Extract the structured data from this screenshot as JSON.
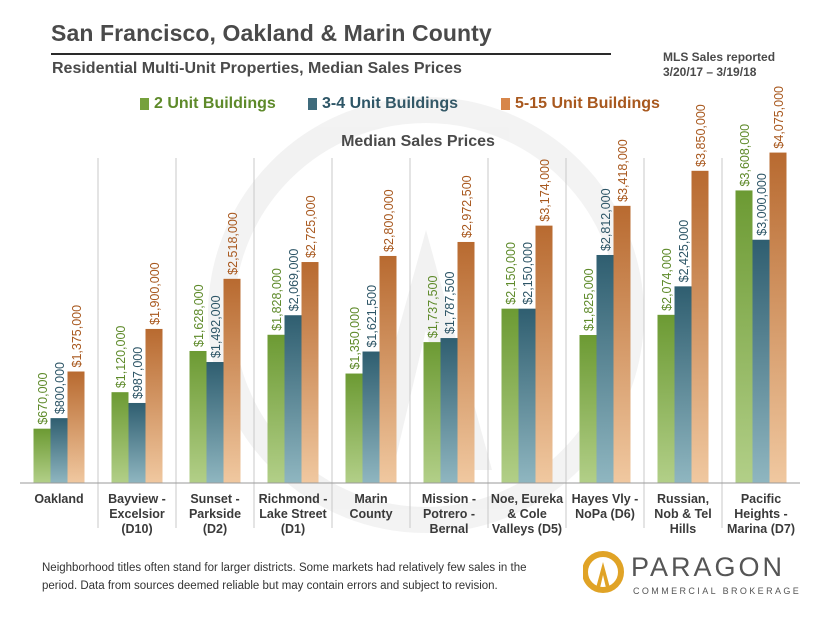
{
  "title": "San Francisco, Oakland & Marin County",
  "subtitle": "Residential Multi-Unit Properties, Median Sales Prices",
  "mls_line1": "MLS Sales reported",
  "mls_line2": "3/20/17 – 3/19/18",
  "footnote": "Neighborhood titles often stand for larger districts. Some markets had relatively few sales in the period. Data from sources deemed reliable but may contain errors and subject to revision.",
  "logo": {
    "name": "PARAGON",
    "tagline": "COMMERCIAL BROKERAGE"
  },
  "colors": {
    "green": "#76a13c",
    "teal": "#3f6b7c",
    "orange": "#c8773a"
  },
  "chart_data": {
    "type": "bar",
    "title": "Median Sales Prices",
    "xlabel": "",
    "ylabel": "",
    "ylim": [
      0,
      4600000
    ],
    "grid": false,
    "legend_position": "top",
    "categories": [
      [
        "Oakland"
      ],
      [
        "Bayview -",
        "Excelsior",
        "(D10)"
      ],
      [
        "Sunset -",
        "Parkside",
        "(D2)"
      ],
      [
        "Richmond -",
        "Lake Street",
        "(D1)"
      ],
      [
        "Marin",
        "County"
      ],
      [
        "Mission -",
        "Potrero -",
        "Bernal"
      ],
      [
        "Noe, Eureka",
        "& Cole",
        "Valleys (D5)"
      ],
      [
        "Hayes Vly -",
        "NoPa (D6)"
      ],
      [
        "Russian,",
        "Nob & Tel",
        "Hills"
      ],
      [
        "Pacific",
        "Heights -",
        "Marina (D7)"
      ]
    ],
    "series": [
      {
        "name": "2 Unit Buildings",
        "color": "#76a13c",
        "values": [
          670000,
          1120000,
          1628000,
          1828000,
          1350000,
          1737500,
          2150000,
          1825000,
          2074000,
          3608000
        ],
        "labels": [
          "$670,000",
          "$1,120,000",
          "$1,628,000",
          "$1,828,000",
          "$1,350,000",
          "$1,737,500",
          "$2,150,000",
          "$1,825,000",
          "$2,074,000",
          "$3,608,000"
        ]
      },
      {
        "name": "3-4 Unit Buildings",
        "color": "#3f6b7c",
        "values": [
          800000,
          987000,
          1492000,
          2069000,
          1621500,
          1787500,
          2150000,
          2812000,
          2425000,
          3000000
        ],
        "labels": [
          "$800,000",
          "$987,000",
          "$1,492,000",
          "$2,069,000",
          "$1,621,500",
          "$1,787,500",
          "$2,150,000",
          "$2,812,000",
          "$2,425,000",
          "$3,000,000"
        ]
      },
      {
        "name": "5-15 Unit Buildings",
        "color": "#c8773a",
        "values": [
          1375000,
          1900000,
          2518000,
          2725000,
          2800000,
          2972500,
          3174000,
          3418000,
          3850000,
          4075000
        ],
        "labels": [
          "$1,375,000",
          "$1,900,000",
          "$2,518,000",
          "$2,725,000",
          "$2,800,000",
          "$2,972,500",
          "$3,174,000",
          "$3,418,000",
          "$3,850,000",
          "$4,075,000"
        ]
      }
    ]
  }
}
